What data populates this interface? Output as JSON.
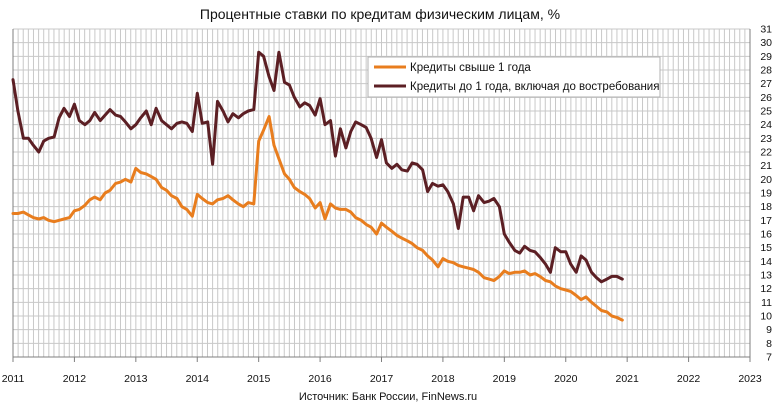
{
  "chart_data": {
    "type": "line",
    "title": "Процентные ставки по кредитам физическим лицам, %",
    "source": "Источник: Банк России, FinNews.ru",
    "xlim": [
      2011,
      2023
    ],
    "ylim": [
      7,
      31
    ],
    "x_ticks": [
      "2011",
      "2012",
      "2013",
      "2014",
      "2015",
      "2016",
      "2017",
      "2018",
      "2019",
      "2020",
      "2021",
      "2022",
      "2023"
    ],
    "y_ticks": [
      "7",
      "8",
      "9",
      "10",
      "11",
      "12",
      "13",
      "14",
      "15",
      "16",
      "17",
      "18",
      "19",
      "20",
      "21",
      "22",
      "23",
      "24",
      "25",
      "26",
      "27",
      "28",
      "29",
      "30",
      "31"
    ],
    "grid": true,
    "legend_position": "top-right",
    "colors": {
      "over1y": "#e87d1e",
      "upto1y": "#5c1f24",
      "grid": "#c8c8c8"
    },
    "series": [
      {
        "name": "Кредиты свыше 1 года",
        "color": "#e87d1e",
        "points": [
          [
            2011.0,
            17.5
          ],
          [
            2011.08,
            17.5
          ],
          [
            2011.17,
            17.6
          ],
          [
            2011.25,
            17.4
          ],
          [
            2011.33,
            17.2
          ],
          [
            2011.42,
            17.1
          ],
          [
            2011.5,
            17.2
          ],
          [
            2011.58,
            17.0
          ],
          [
            2011.67,
            16.9
          ],
          [
            2011.75,
            17.0
          ],
          [
            2011.83,
            17.1
          ],
          [
            2011.92,
            17.2
          ],
          [
            2012.0,
            17.7
          ],
          [
            2012.08,
            17.8
          ],
          [
            2012.17,
            18.1
          ],
          [
            2012.25,
            18.5
          ],
          [
            2012.33,
            18.7
          ],
          [
            2012.42,
            18.5
          ],
          [
            2012.5,
            19.0
          ],
          [
            2012.58,
            19.2
          ],
          [
            2012.67,
            19.7
          ],
          [
            2012.75,
            19.8
          ],
          [
            2012.83,
            20.0
          ],
          [
            2012.92,
            19.8
          ],
          [
            2013.0,
            20.8
          ],
          [
            2013.08,
            20.5
          ],
          [
            2013.17,
            20.4
          ],
          [
            2013.25,
            20.2
          ],
          [
            2013.33,
            20.0
          ],
          [
            2013.42,
            19.4
          ],
          [
            2013.5,
            19.2
          ],
          [
            2013.58,
            18.8
          ],
          [
            2013.67,
            18.6
          ],
          [
            2013.75,
            18.0
          ],
          [
            2013.83,
            17.8
          ],
          [
            2013.92,
            17.3
          ],
          [
            2014.0,
            18.9
          ],
          [
            2014.08,
            18.6
          ],
          [
            2014.17,
            18.3
          ],
          [
            2014.25,
            18.2
          ],
          [
            2014.33,
            18.5
          ],
          [
            2014.42,
            18.6
          ],
          [
            2014.5,
            18.8
          ],
          [
            2014.58,
            18.5
          ],
          [
            2014.67,
            18.2
          ],
          [
            2014.75,
            18.0
          ],
          [
            2014.83,
            18.3
          ],
          [
            2014.92,
            18.2
          ],
          [
            2015.0,
            22.8
          ],
          [
            2015.08,
            23.6
          ],
          [
            2015.17,
            24.6
          ],
          [
            2015.25,
            22.5
          ],
          [
            2015.33,
            21.5
          ],
          [
            2015.42,
            20.4
          ],
          [
            2015.5,
            20.0
          ],
          [
            2015.58,
            19.4
          ],
          [
            2015.67,
            19.1
          ],
          [
            2015.75,
            18.9
          ],
          [
            2015.83,
            18.6
          ],
          [
            2015.92,
            17.9
          ],
          [
            2016.0,
            18.3
          ],
          [
            2016.08,
            17.1
          ],
          [
            2016.17,
            18.2
          ],
          [
            2016.25,
            17.9
          ],
          [
            2016.33,
            17.8
          ],
          [
            2016.42,
            17.8
          ],
          [
            2016.5,
            17.6
          ],
          [
            2016.58,
            17.2
          ],
          [
            2016.67,
            17.0
          ],
          [
            2016.75,
            16.7
          ],
          [
            2016.83,
            16.5
          ],
          [
            2016.92,
            16.0
          ],
          [
            2017.0,
            16.8
          ],
          [
            2017.08,
            16.5
          ],
          [
            2017.17,
            16.2
          ],
          [
            2017.25,
            15.9
          ],
          [
            2017.33,
            15.7
          ],
          [
            2017.42,
            15.5
          ],
          [
            2017.5,
            15.3
          ],
          [
            2017.58,
            15.0
          ],
          [
            2017.67,
            14.8
          ],
          [
            2017.75,
            14.4
          ],
          [
            2017.83,
            14.1
          ],
          [
            2017.92,
            13.6
          ],
          [
            2018.0,
            14.2
          ],
          [
            2018.08,
            14.0
          ],
          [
            2018.17,
            13.9
          ],
          [
            2018.25,
            13.7
          ],
          [
            2018.33,
            13.6
          ],
          [
            2018.42,
            13.5
          ],
          [
            2018.5,
            13.4
          ],
          [
            2018.58,
            13.2
          ],
          [
            2018.67,
            12.8
          ],
          [
            2018.75,
            12.7
          ],
          [
            2018.83,
            12.6
          ],
          [
            2018.92,
            12.9
          ],
          [
            2019.0,
            13.3
          ],
          [
            2019.08,
            13.1
          ],
          [
            2019.17,
            13.2
          ],
          [
            2019.25,
            13.2
          ],
          [
            2019.33,
            13.3
          ],
          [
            2019.42,
            13.0
          ],
          [
            2019.5,
            13.1
          ],
          [
            2019.58,
            12.9
          ],
          [
            2019.67,
            12.6
          ],
          [
            2019.75,
            12.5
          ],
          [
            2019.83,
            12.2
          ],
          [
            2019.92,
            12.0
          ],
          [
            2020.0,
            11.9
          ],
          [
            2020.08,
            11.8
          ],
          [
            2020.17,
            11.5
          ],
          [
            2020.25,
            11.2
          ],
          [
            2020.33,
            11.4
          ],
          [
            2020.42,
            11.0
          ],
          [
            2020.5,
            10.7
          ],
          [
            2020.58,
            10.4
          ],
          [
            2020.67,
            10.3
          ],
          [
            2020.75,
            10.0
          ],
          [
            2020.83,
            9.9
          ],
          [
            2020.92,
            9.7
          ]
        ]
      },
      {
        "name": "Кредиты до 1 года, включая до востребования",
        "color": "#5c1f24",
        "points": [
          [
            2011.0,
            27.3
          ],
          [
            2011.08,
            25.0
          ],
          [
            2011.17,
            23.0
          ],
          [
            2011.25,
            23.0
          ],
          [
            2011.33,
            22.5
          ],
          [
            2011.42,
            22.0
          ],
          [
            2011.5,
            22.8
          ],
          [
            2011.58,
            23.0
          ],
          [
            2011.67,
            23.1
          ],
          [
            2011.75,
            24.5
          ],
          [
            2011.83,
            25.2
          ],
          [
            2011.92,
            24.6
          ],
          [
            2012.0,
            25.5
          ],
          [
            2012.08,
            24.3
          ],
          [
            2012.17,
            24.0
          ],
          [
            2012.25,
            24.3
          ],
          [
            2012.33,
            24.9
          ],
          [
            2012.42,
            24.3
          ],
          [
            2012.5,
            24.7
          ],
          [
            2012.58,
            25.1
          ],
          [
            2012.67,
            24.7
          ],
          [
            2012.75,
            24.6
          ],
          [
            2012.83,
            24.2
          ],
          [
            2012.92,
            23.7
          ],
          [
            2013.0,
            24.0
          ],
          [
            2013.08,
            24.5
          ],
          [
            2013.17,
            25.0
          ],
          [
            2013.25,
            24.0
          ],
          [
            2013.33,
            25.2
          ],
          [
            2013.42,
            24.3
          ],
          [
            2013.5,
            24.0
          ],
          [
            2013.58,
            23.7
          ],
          [
            2013.67,
            24.1
          ],
          [
            2013.75,
            24.2
          ],
          [
            2013.83,
            24.1
          ],
          [
            2013.92,
            23.5
          ],
          [
            2014.0,
            26.3
          ],
          [
            2014.08,
            24.1
          ],
          [
            2014.17,
            24.2
          ],
          [
            2014.25,
            21.1
          ],
          [
            2014.33,
            25.7
          ],
          [
            2014.42,
            25.0
          ],
          [
            2014.5,
            24.2
          ],
          [
            2014.58,
            24.8
          ],
          [
            2014.67,
            24.5
          ],
          [
            2014.75,
            24.8
          ],
          [
            2014.83,
            25.0
          ],
          [
            2014.92,
            25.1
          ],
          [
            2015.0,
            29.3
          ],
          [
            2015.08,
            29.0
          ],
          [
            2015.17,
            27.5
          ],
          [
            2015.25,
            26.5
          ],
          [
            2015.33,
            29.3
          ],
          [
            2015.42,
            27.1
          ],
          [
            2015.5,
            26.9
          ],
          [
            2015.58,
            26.0
          ],
          [
            2015.67,
            25.3
          ],
          [
            2015.75,
            25.6
          ],
          [
            2015.83,
            25.4
          ],
          [
            2015.92,
            24.7
          ],
          [
            2016.0,
            25.9
          ],
          [
            2016.08,
            24.0
          ],
          [
            2016.17,
            24.3
          ],
          [
            2016.25,
            21.7
          ],
          [
            2016.33,
            23.7
          ],
          [
            2016.42,
            22.3
          ],
          [
            2016.5,
            23.5
          ],
          [
            2016.58,
            24.2
          ],
          [
            2016.67,
            24.0
          ],
          [
            2016.75,
            23.8
          ],
          [
            2016.83,
            23.0
          ],
          [
            2016.92,
            21.6
          ],
          [
            2017.0,
            22.9
          ],
          [
            2017.08,
            21.2
          ],
          [
            2017.17,
            20.8
          ],
          [
            2017.25,
            21.1
          ],
          [
            2017.33,
            20.7
          ],
          [
            2017.42,
            20.6
          ],
          [
            2017.5,
            21.2
          ],
          [
            2017.58,
            21.1
          ],
          [
            2017.67,
            20.7
          ],
          [
            2017.75,
            19.1
          ],
          [
            2017.83,
            19.7
          ],
          [
            2017.92,
            19.5
          ],
          [
            2018.0,
            19.6
          ],
          [
            2018.08,
            19.1
          ],
          [
            2018.17,
            18.2
          ],
          [
            2018.25,
            16.4
          ],
          [
            2018.33,
            18.7
          ],
          [
            2018.42,
            18.7
          ],
          [
            2018.5,
            17.7
          ],
          [
            2018.58,
            18.8
          ],
          [
            2018.67,
            18.3
          ],
          [
            2018.75,
            18.4
          ],
          [
            2018.83,
            18.6
          ],
          [
            2018.92,
            18.0
          ],
          [
            2019.0,
            16.0
          ],
          [
            2019.08,
            15.4
          ],
          [
            2019.17,
            14.8
          ],
          [
            2019.25,
            14.6
          ],
          [
            2019.33,
            15.1
          ],
          [
            2019.42,
            14.8
          ],
          [
            2019.5,
            14.7
          ],
          [
            2019.58,
            14.3
          ],
          [
            2019.67,
            13.8
          ],
          [
            2019.75,
            13.2
          ],
          [
            2019.83,
            15.0
          ],
          [
            2019.92,
            14.7
          ],
          [
            2020.0,
            14.7
          ],
          [
            2020.08,
            13.8
          ],
          [
            2020.17,
            13.2
          ],
          [
            2020.25,
            14.4
          ],
          [
            2020.33,
            14.1
          ],
          [
            2020.42,
            13.2
          ],
          [
            2020.5,
            12.8
          ],
          [
            2020.58,
            12.5
          ],
          [
            2020.67,
            12.7
          ],
          [
            2020.75,
            12.9
          ],
          [
            2020.83,
            12.9
          ],
          [
            2020.92,
            12.7
          ]
        ]
      }
    ]
  }
}
